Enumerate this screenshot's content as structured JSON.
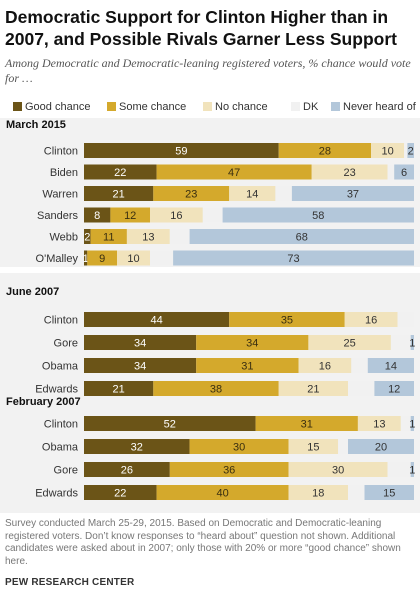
{
  "title": "Democratic Support for Clinton Higher than in 2007, and Possible Rivals Garner Less Support",
  "subtitle": "Among Democratic and Democratic-leaning registered voters, % chance would vote for …",
  "legend": [
    {
      "label": "Good chance",
      "color": "#6b5417"
    },
    {
      "label": "Some chance",
      "color": "#d4a92c"
    },
    {
      "label": "No chance",
      "color": "#f1e3bc"
    },
    {
      "label": "DK",
      "color": "#f1f1f1"
    },
    {
      "label": "Never heard of",
      "color": "#b3c7da"
    }
  ],
  "note": "Survey conducted March 25-29, 2015. Based on Democratic and Democratic-leaning registered voters. Don’t know responses to “heard about” question not shown. Additional candidates were asked about in 2007; only those with 20% or more “good chance” shown here.",
  "source": "PEW RESEARCH CENTER",
  "chart_data": {
    "type": "bar",
    "orientation": "horizontal",
    "stacked": true,
    "xlim": [
      0,
      100
    ],
    "categories_order": [
      "Good chance",
      "Some chance",
      "No chance",
      "DK",
      "Never heard of"
    ],
    "groups": [
      {
        "label": "March 2015",
        "rows": [
          {
            "name": "Clinton",
            "values": [
              59,
              28,
              10,
              1,
              2
            ],
            "labels": [
              "59",
              "28",
              "10",
              "",
              "2"
            ]
          },
          {
            "name": "Biden",
            "values": [
              22,
              47,
              23,
              2,
              6
            ],
            "labels": [
              "22",
              "47",
              "23",
              "",
              "6"
            ]
          },
          {
            "name": "Warren",
            "values": [
              21,
              23,
              14,
              5,
              37
            ],
            "labels": [
              "21",
              "23",
              "14",
              "",
              "37"
            ]
          },
          {
            "name": "Sanders",
            "values": [
              8,
              12,
              16,
              6,
              58
            ],
            "labels": [
              "8",
              "12",
              "16",
              "",
              "58"
            ]
          },
          {
            "name": "Webb",
            "values": [
              2,
              11,
              13,
              6,
              68
            ],
            "labels": [
              "2",
              "11",
              "13",
              "",
              "68"
            ]
          },
          {
            "name": "O'Malley",
            "values": [
              1,
              9,
              10,
              7,
              73
            ],
            "labels": [
              "1",
              "9",
              "10",
              "",
              "73"
            ]
          }
        ]
      },
      {
        "label": "June 2007",
        "rows": [
          {
            "name": "Clinton",
            "values": [
              44,
              35,
              16,
              5,
              0
            ],
            "labels": [
              "44",
              "35",
              "16",
              "",
              ""
            ]
          },
          {
            "name": "Gore",
            "values": [
              34,
              34,
              25,
              6,
              1
            ],
            "labels": [
              "34",
              "34",
              "25",
              "",
              "1"
            ]
          },
          {
            "name": "Obama",
            "values": [
              34,
              31,
              16,
              5,
              14
            ],
            "labels": [
              "34",
              "31",
              "16",
              "",
              "14"
            ]
          },
          {
            "name": "Edwards",
            "values": [
              21,
              38,
              21,
              8,
              12
            ],
            "labels": [
              "21",
              "38",
              "21",
              "",
              "12"
            ]
          }
        ]
      },
      {
        "label": "February 2007",
        "rows": [
          {
            "name": "Clinton",
            "values": [
              52,
              31,
              13,
              3,
              1
            ],
            "labels": [
              "52",
              "31",
              "13",
              "",
              "1"
            ]
          },
          {
            "name": "Obama",
            "values": [
              32,
              30,
              15,
              3,
              20
            ],
            "labels": [
              "32",
              "30",
              "15",
              "",
              "20"
            ]
          },
          {
            "name": "Gore",
            "values": [
              26,
              36,
              30,
              7,
              1
            ],
            "labels": [
              "26",
              "36",
              "30",
              "",
              "1"
            ]
          },
          {
            "name": "Edwards",
            "values": [
              22,
              40,
              18,
              5,
              15
            ],
            "labels": [
              "22",
              "40",
              "18",
              "",
              "15"
            ]
          }
        ]
      }
    ]
  }
}
